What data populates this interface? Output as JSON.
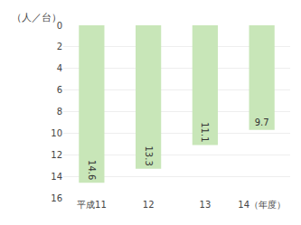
{
  "chart_data": {
    "type": "bar",
    "ylabel": "（人／台）",
    "categories": [
      "平成11",
      "12",
      "13",
      "14（年度）"
    ],
    "values": [
      14.6,
      13.3,
      11.1,
      9.7
    ],
    "color": "#c8e6b8",
    "ylim": [
      16,
      0
    ],
    "yticks": [
      0,
      2,
      4,
      6,
      8,
      10,
      12,
      14,
      16
    ],
    "grid": true,
    "data_labels": true
  }
}
